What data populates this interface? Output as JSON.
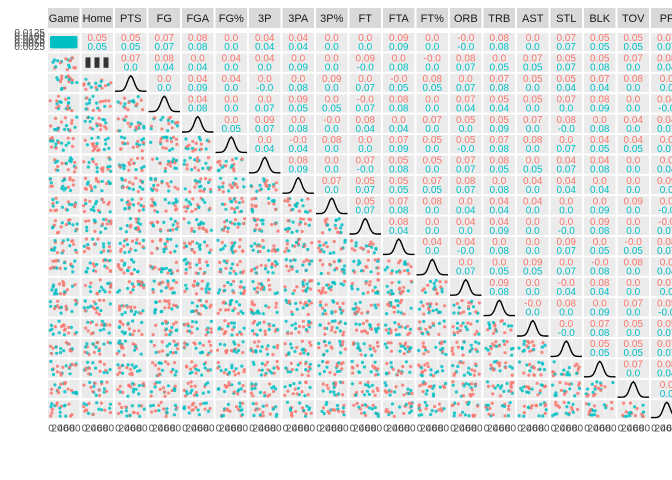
{
  "chart_data": {
    "type": "scatter",
    "subtype": "pairs-matrix",
    "title": "",
    "grid": true,
    "legend": "none",
    "colors": {
      "group_a": "#F8766D",
      "group_b": "#00BFC4",
      "panel_bg": "#EBEBEB",
      "strip_bg": "#D9D9D9",
      "density_line": "#000000",
      "grid_line": "#FFFFFF"
    },
    "variables": [
      "Game",
      "Home",
      "PTS",
      "FG",
      "FGA",
      "FG%",
      "3P",
      "3PA",
      "3P%",
      "FT",
      "FTA",
      "FT%",
      "ORB",
      "TRB",
      "AST",
      "STL",
      "BLK",
      "TOV",
      "PF"
    ],
    "correlations": [
      {
        "row": "PTS",
        "values": [
          "0.07",
          "0.05",
          "",
          "",
          "",
          "",
          "",
          "",
          "",
          "",
          "",
          "",
          "",
          "",
          "",
          "",
          "",
          "",
          ""
        ]
      }
    ],
    "corr_text_upper": [
      "0.07",
      "0.05",
      "0.05",
      "0.07",
      "0.08",
      "0.0",
      "0.04",
      "0.04",
      "0.0",
      "0.0",
      "0.09",
      "0.0",
      "-0.0",
      "0.08",
      "0.0"
    ],
    "tick_labels": {
      "x_bottom": [
        "0",
        "20",
        "40",
        "60",
        "80"
      ],
      "y_left": [
        "0.0125",
        "0.0100",
        "0.0075",
        "0.0050",
        "0.0025"
      ]
    }
  }
}
